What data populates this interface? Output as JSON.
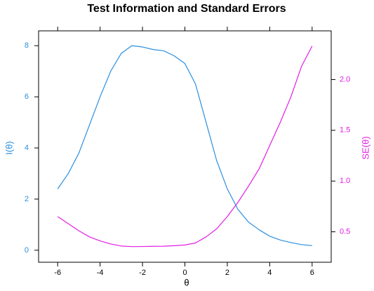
{
  "chart_data": {
    "type": "line",
    "title": "Test Information and Standard Errors",
    "xlabel": "θ",
    "ylabel": "I(θ)",
    "y2label": "SE(θ)",
    "x": [
      -6,
      -5.5,
      -5,
      -4.5,
      -4,
      -3.5,
      -3,
      -2.5,
      -2,
      -1.5,
      -1,
      -0.5,
      0,
      0.5,
      1,
      1.5,
      2,
      2.5,
      3,
      3.5,
      4,
      4.5,
      5,
      5.5,
      6
    ],
    "series": [
      {
        "name": "I(θ)",
        "color": "#2b8fe0",
        "axis": "y",
        "values": [
          2.4,
          3.0,
          3.8,
          4.9,
          6.0,
          7.0,
          7.7,
          8.0,
          7.95,
          7.85,
          7.8,
          7.6,
          7.3,
          6.5,
          5.0,
          3.5,
          2.4,
          1.6,
          1.1,
          0.8,
          0.55,
          0.4,
          0.3,
          0.22,
          0.18
        ]
      },
      {
        "name": "SE(θ)",
        "color": "#e31ee3",
        "axis": "y2",
        "values": [
          0.65,
          0.58,
          0.51,
          0.45,
          0.41,
          0.38,
          0.36,
          0.354,
          0.355,
          0.357,
          0.358,
          0.363,
          0.37,
          0.39,
          0.45,
          0.53,
          0.65,
          0.79,
          0.95,
          1.12,
          1.35,
          1.58,
          1.83,
          2.13,
          2.33
        ]
      }
    ],
    "xlim": [
      -6.9,
      6.9
    ],
    "xticks": [
      -6,
      -4,
      -2,
      0,
      2,
      4,
      6
    ],
    "ylim": [
      -0.47,
      8.58
    ],
    "yticks": [
      0,
      2,
      4,
      6,
      8
    ],
    "y2lim": [
      0.2,
      2.48
    ],
    "y2ticks": [
      0.5,
      {
        "value": 1.0,
        "label": "1.0"
      },
      1.5,
      {
        "value": 2.0,
        "label": "2.0"
      }
    ]
  }
}
